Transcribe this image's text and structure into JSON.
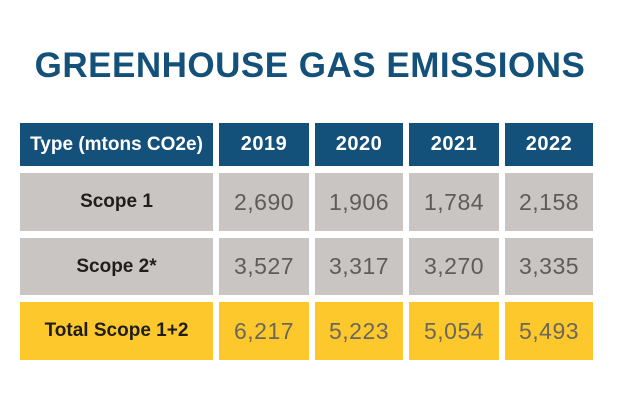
{
  "title": "GREENHOUSE GAS EMISSIONS",
  "table": {
    "header": {
      "type_label": "Type (mtons CO2e)",
      "years": [
        "2019",
        "2020",
        "2021",
        "2022"
      ]
    },
    "rows": [
      {
        "label": "Scope 1",
        "values": [
          "2,690",
          "1,906",
          "1,784",
          "2,158"
        ]
      },
      {
        "label": "Scope 2*",
        "values": [
          "3,527",
          "3,317",
          "3,270",
          "3,335"
        ]
      },
      {
        "label": "Total Scope 1+2",
        "values": [
          "6,217",
          "5,223",
          "5,054",
          "5,493"
        ]
      }
    ]
  },
  "chart_data": {
    "type": "table",
    "title": "GREENHOUSE GAS EMISSIONS",
    "columns": [
      "Type (mtons CO2e)",
      "2019",
      "2020",
      "2021",
      "2022"
    ],
    "rows": [
      [
        "Scope 1",
        2690,
        1906,
        1784,
        2158
      ],
      [
        "Scope 2*",
        3527,
        3317,
        3270,
        3335
      ],
      [
        "Total Scope 1+2",
        6217,
        5223,
        5054,
        5493
      ]
    ],
    "units_note": "mtons CO2e"
  },
  "colors": {
    "title_blue": "#14517a",
    "header_blue": "#14517a",
    "row_gray": "#c8c5c2",
    "total_yellow": "#fdc82c",
    "value_text_gray": "#5d5c5a",
    "label_text_dark": "#201e1d",
    "header_text_white": "#ffffff"
  }
}
